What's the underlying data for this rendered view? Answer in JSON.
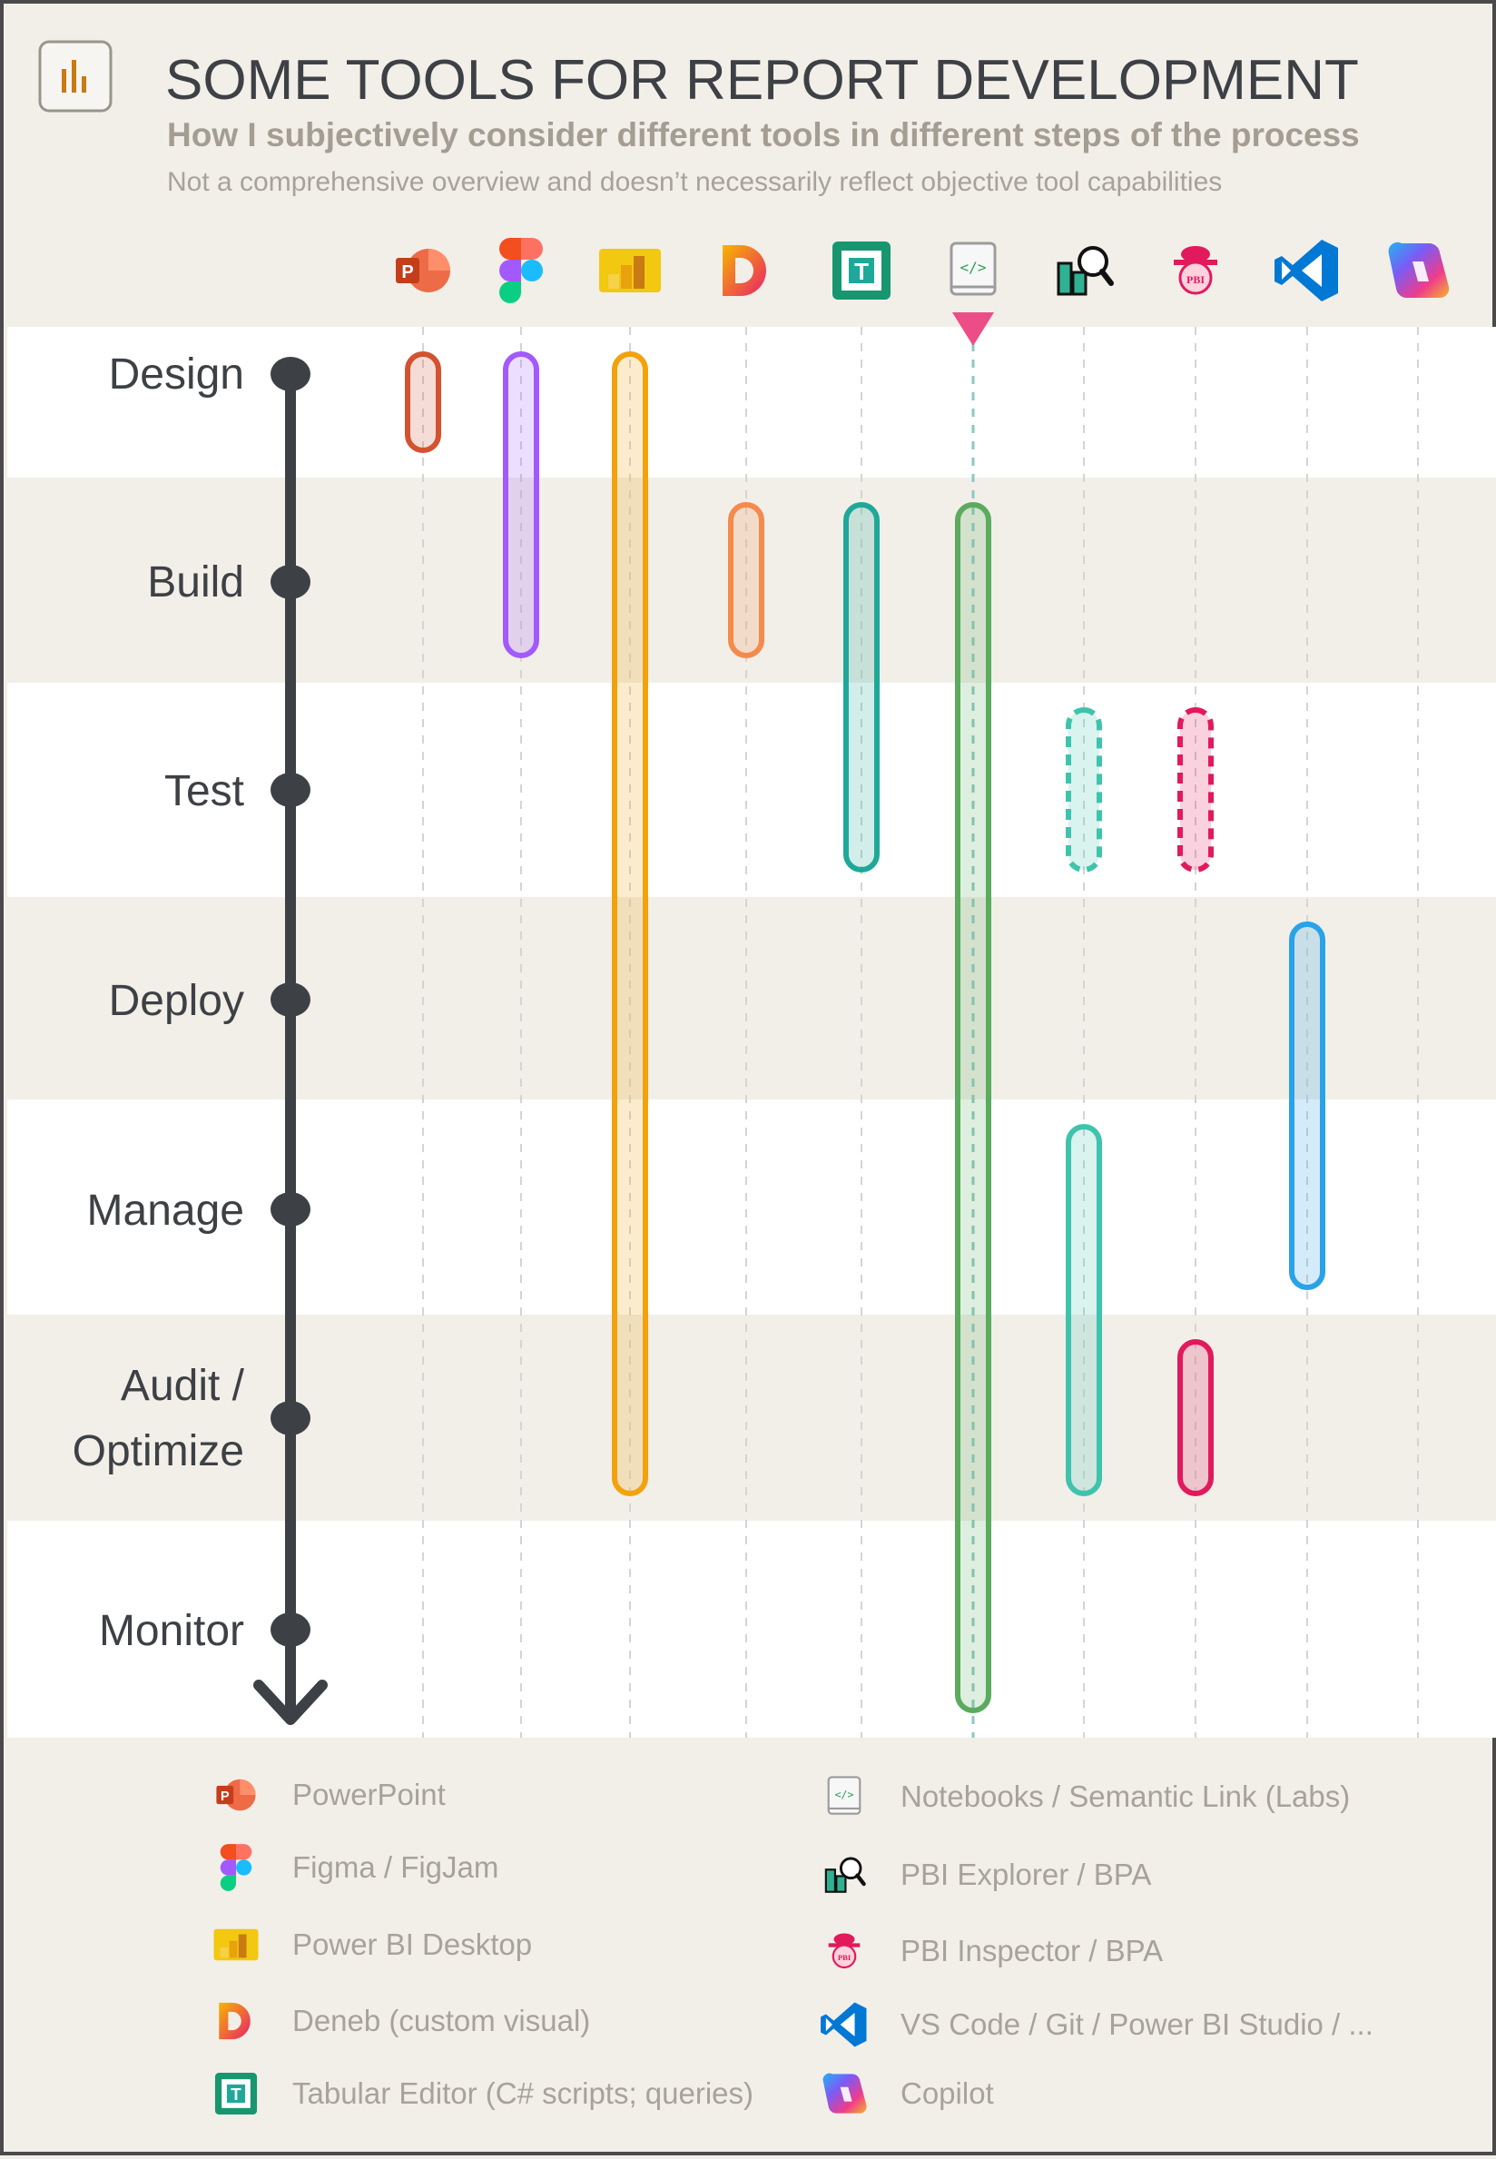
{
  "header": {
    "title": "SOME TOOLS FOR REPORT DEVELOPMENT",
    "subtitle": "How I subjectively consider different tools in different steps of the process",
    "note": "Not a comprehensive overview and doesn’t necessarily reflect objective tool capabilities"
  },
  "steps": [
    "Design",
    "Build",
    "Test",
    "Deploy",
    "Manage",
    "Audit /",
    "Optimize",
    "Monitor"
  ],
  "tools": [
    {
      "id": "powerpoint",
      "icon": "powerpoint-icon",
      "label": "PowerPoint",
      "color": "#d35230"
    },
    {
      "id": "figma",
      "icon": "figma-icon",
      "label": "Figma / FigJam",
      "color": "#a259ff"
    },
    {
      "id": "pbi-desktop",
      "icon": "power-bi-icon",
      "label": "Power BI Desktop",
      "color": "#f2a20c"
    },
    {
      "id": "deneb",
      "icon": "deneb-icon",
      "label": "Deneb (custom visual)",
      "color": "#f48a4b"
    },
    {
      "id": "tabular-editor",
      "icon": "tabular-editor-icon",
      "label": "Tabular Editor (C# scripts; queries)",
      "color": "#1fa89a"
    },
    {
      "id": "notebooks",
      "icon": "notebook-icon",
      "label": "Notebooks / Semantic Link (Labs)",
      "color": "#5aab5e"
    },
    {
      "id": "pbi-explorer",
      "icon": "pbi-explorer-icon",
      "label": "PBI Explorer / BPA",
      "color": "#3fc3ad"
    },
    {
      "id": "pbi-inspector",
      "icon": "pbi-inspector-icon",
      "label": "PBI Inspector / BPA",
      "color": "#e2195d"
    },
    {
      "id": "vscode",
      "icon": "vscode-icon",
      "label": "VS Code / Git / Power BI Studio / ...",
      "color": "#2aa2e8"
    },
    {
      "id": "copilot",
      "icon": "copilot-icon",
      "label": "Copilot",
      "color": "#8a5cf6"
    }
  ],
  "spans": [
    {
      "tool": 0,
      "from": 0,
      "to": 0,
      "style": "solid"
    },
    {
      "tool": 1,
      "from": 0,
      "to": 1,
      "style": "solid"
    },
    {
      "tool": 2,
      "from": 0,
      "to": 5,
      "style": "solid"
    },
    {
      "tool": 3,
      "from": 1,
      "to": 1,
      "style": "solid"
    },
    {
      "tool": 4,
      "from": 1,
      "to": 2,
      "style": "solid"
    },
    {
      "tool": 5,
      "from": 1,
      "to": 6,
      "style": "solid"
    },
    {
      "tool": 6,
      "from": 2,
      "to": 2,
      "style": "dashed"
    },
    {
      "tool": 7,
      "from": 2,
      "to": 2,
      "style": "dashed"
    },
    {
      "tool": 8,
      "from": 3,
      "to": 4,
      "style": "solid"
    },
    {
      "tool": 6,
      "from": 4,
      "to": 5,
      "style": "solid"
    },
    {
      "tool": 7,
      "from": 5,
      "to": 5,
      "style": "solid"
    }
  ],
  "colors": {
    "band_white": "#ffffff",
    "band_beige": "#f2efe9",
    "ink": "#3d4145",
    "subtitle": "#a39d92",
    "note": "#a7a29a",
    "legend_text": "#a7a29a",
    "marker": "#ec4d86"
  }
}
